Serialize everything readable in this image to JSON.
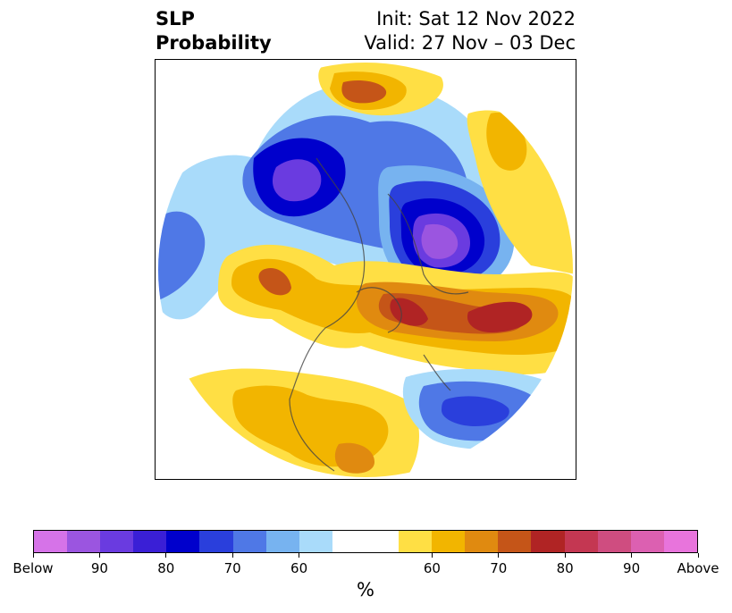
{
  "title": {
    "left_line1": "SLP",
    "left_line2": "Probability",
    "right_line1": "Init: Sat 12 Nov 2022",
    "right_line2": "Valid: 27 Nov – 03 Dec"
  },
  "colorbar": {
    "colors": [
      "#d673e8",
      "#9b55e0",
      "#6a3be0",
      "#3a1fd6",
      "#0000cc",
      "#2a3fdc",
      "#4f78e6",
      "#77b3f0",
      "#a9dbfa",
      "#ffffff",
      "#ffffff",
      "#ffdf44",
      "#f2b500",
      "#e08a10",
      "#c55518",
      "#b02424",
      "#c43752",
      "#cf4d80",
      "#dc60b1",
      "#e874dc"
    ],
    "labels": [
      {
        "text": "Below",
        "index": 0
      },
      {
        "text": "90",
        "index": 2
      },
      {
        "text": "80",
        "index": 4
      },
      {
        "text": "70",
        "index": 6
      },
      {
        "text": "60",
        "index": 8
      },
      {
        "text": "60",
        "index": 12
      },
      {
        "text": "70",
        "index": 14
      },
      {
        "text": "80",
        "index": 16
      },
      {
        "text": "90",
        "index": 18
      },
      {
        "text": "Above",
        "index": 20
      }
    ],
    "unit": "%"
  }
}
